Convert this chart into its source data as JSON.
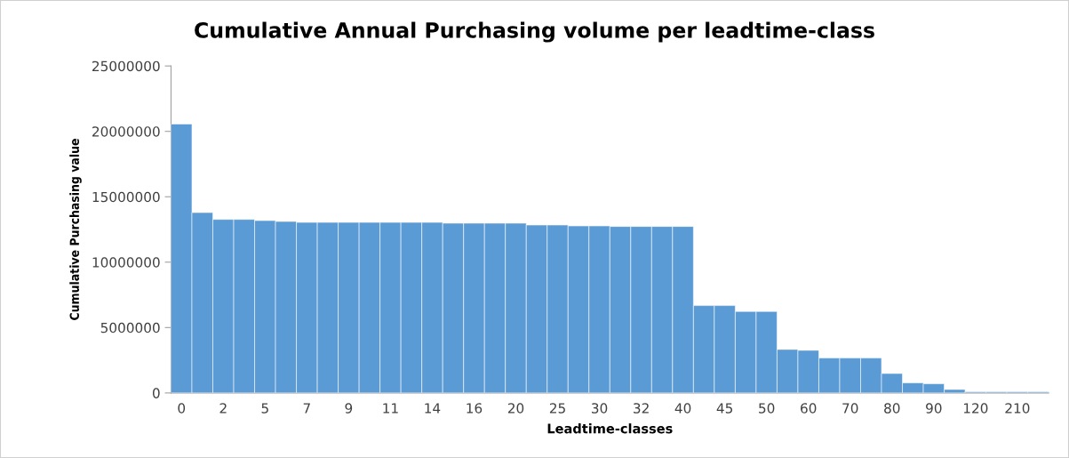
{
  "chart_data": {
    "type": "bar",
    "title": "Cumulative Annual Purchasing volume per leadtime-class",
    "xlabel": "Leadtime-classes",
    "ylabel": "Cumulative Purchasing value",
    "categories": [
      "0",
      null,
      "2",
      null,
      "5",
      null,
      "7",
      null,
      "9",
      null,
      "11",
      null,
      "14",
      null,
      "16",
      null,
      "20",
      null,
      "25",
      null,
      "30",
      null,
      "32",
      null,
      "40",
      null,
      "45",
      null,
      "50",
      null,
      "60",
      null,
      "70",
      null,
      "80",
      null,
      "90",
      null,
      "120",
      null,
      "210",
      null
    ],
    "values": [
      20560000,
      13790000,
      13270000,
      13270000,
      13180000,
      13110000,
      13040000,
      13040000,
      13040000,
      13040000,
      13040000,
      13040000,
      13040000,
      12980000,
      12980000,
      12980000,
      12980000,
      12840000,
      12840000,
      12770000,
      12770000,
      12730000,
      12730000,
      12730000,
      12730000,
      6680000,
      6680000,
      6230000,
      6230000,
      3330000,
      3260000,
      2670000,
      2670000,
      2670000,
      1490000,
      770000,
      700000,
      270000,
      100000,
      100000,
      100000,
      100000
    ],
    "color": "#5b9bd5",
    "ylim": [
      0,
      25000000
    ],
    "yticks": [
      0,
      5000000,
      10000000,
      15000000,
      20000000,
      25000000
    ],
    "grid": false,
    "legend": false
  }
}
